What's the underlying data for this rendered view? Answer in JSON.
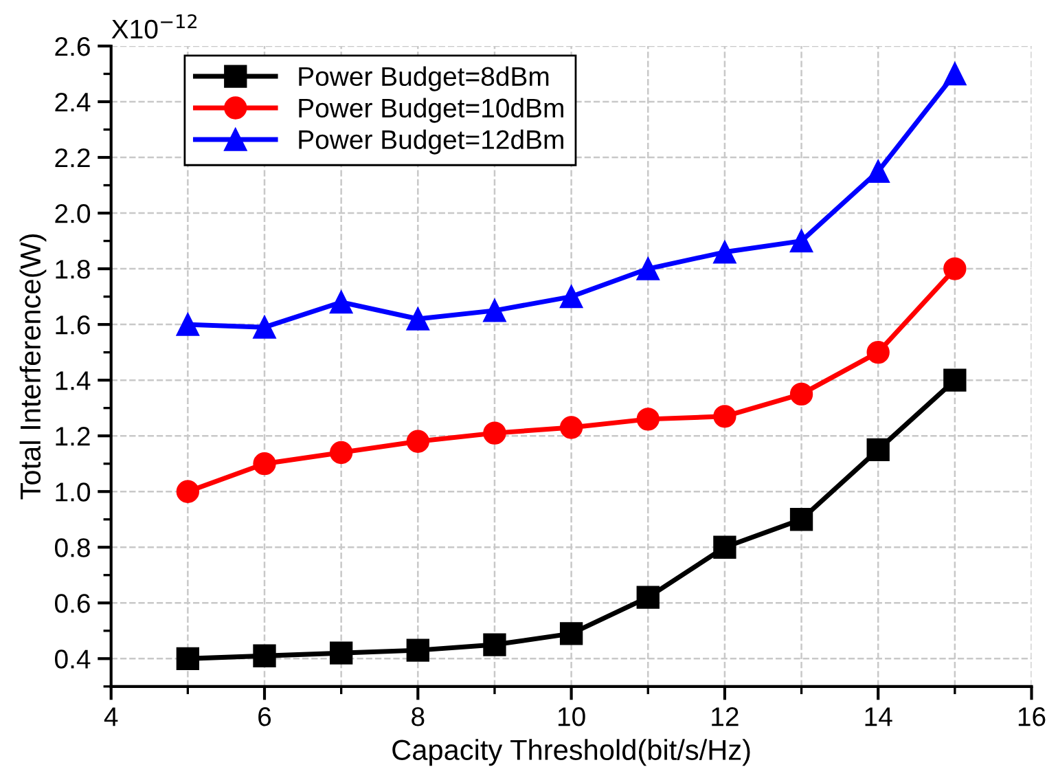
{
  "chart_data": {
    "type": "line",
    "xlabel": "Capacity Threshold(bit/s/Hz)",
    "ylabel": "Total Interference(W)",
    "annotations": [
      "X10$^{−12}$"
    ],
    "x": [
      5,
      6,
      7,
      8,
      9,
      10,
      11,
      12,
      13,
      14,
      15
    ],
    "series": [
      {
        "name": "Power Budget=8dBm",
        "color": "#000000",
        "marker": "square",
        "values": [
          0.4,
          0.41,
          0.42,
          0.43,
          0.45,
          0.49,
          0.62,
          0.8,
          0.9,
          1.15,
          1.4
        ]
      },
      {
        "name": "Power Budget=10dBm",
        "color": "#ff0000",
        "marker": "circle",
        "values": [
          1.0,
          1.1,
          1.14,
          1.18,
          1.21,
          1.23,
          1.26,
          1.27,
          1.35,
          1.5,
          1.8
        ]
      },
      {
        "name": "Power Budget=12dBm",
        "color": "#0000ff",
        "marker": "triangle",
        "values": [
          1.6,
          1.59,
          1.68,
          1.62,
          1.65,
          1.7,
          1.8,
          1.86,
          1.9,
          2.15,
          2.5
        ]
      }
    ],
    "xlim": [
      4,
      16
    ],
    "xticks": [
      4,
      {
        "value": 5,
        "label": null
      },
      6,
      {
        "value": 7,
        "label": null
      },
      8,
      {
        "value": 9,
        "label": null
      },
      10,
      {
        "value": 11,
        "label": null
      },
      12,
      {
        "value": 13,
        "label": null
      },
      14,
      {
        "value": 15,
        "label": null
      },
      16
    ],
    "ylim": [
      0.3,
      2.6
    ],
    "yticks": [
      {
        "value": 0.3,
        "label": null
      },
      0.4,
      {
        "value": 0.5,
        "label": null
      },
      0.6,
      {
        "value": 0.7,
        "label": null
      },
      0.8,
      {
        "value": 0.9,
        "label": null
      },
      {
        "value": 1.0,
        "label": "1.0"
      },
      {
        "value": 1.1,
        "label": null
      },
      1.2,
      {
        "value": 1.3,
        "label": null
      },
      1.4,
      {
        "value": 1.5,
        "label": null
      },
      1.6,
      {
        "value": 1.7,
        "label": null
      },
      1.8,
      {
        "value": 1.9,
        "label": null
      },
      {
        "value": 2.0,
        "label": "2.0"
      },
      {
        "value": 2.1,
        "label": null
      },
      2.2,
      {
        "value": 2.3,
        "label": null
      },
      2.4,
      {
        "value": 2.5,
        "label": null
      },
      2.6
    ],
    "grid": true,
    "legend": "top left",
    "line_style": "solid"
  }
}
